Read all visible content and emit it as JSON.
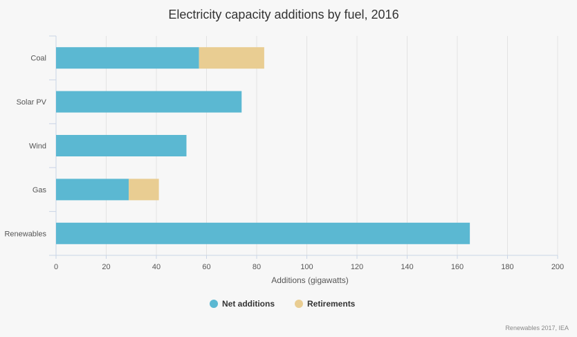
{
  "chart_data": {
    "type": "bar",
    "orientation": "horizontal",
    "stacked": true,
    "title": "Electricity capacity additions by fuel, 2016",
    "xlabel": "Additions (gigawatts)",
    "ylabel": "",
    "categories": [
      "Coal",
      "Solar PV",
      "Wind",
      "Gas",
      "Renewables"
    ],
    "series": [
      {
        "name": "Net additions",
        "color": "#5bb8d2",
        "values": [
          57,
          74,
          52,
          29,
          165
        ]
      },
      {
        "name": "Retirements",
        "color": "#e9cd92",
        "values": [
          26,
          0,
          0,
          12,
          0
        ]
      }
    ],
    "xlim": [
      0,
      200
    ],
    "xticks": [
      0,
      20,
      40,
      60,
      80,
      100,
      120,
      140,
      160,
      180,
      200
    ],
    "grid": true,
    "legend": "bottom-center"
  },
  "credit": "Renewables 2017, IEA"
}
